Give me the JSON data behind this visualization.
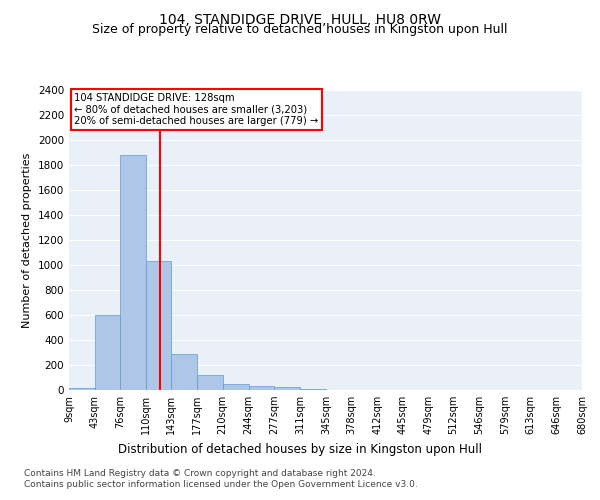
{
  "title1": "104, STANDIDGE DRIVE, HULL, HU8 0RW",
  "title2": "Size of property relative to detached houses in Kingston upon Hull",
  "xlabel": "Distribution of detached houses by size in Kingston upon Hull",
  "ylabel": "Number of detached properties",
  "footnote1": "Contains HM Land Registry data © Crown copyright and database right 2024.",
  "footnote2": "Contains public sector information licensed under the Open Government Licence v3.0.",
  "annotation_line1": "104 STANDIDGE DRIVE: 128sqm",
  "annotation_line2": "← 80% of detached houses are smaller (3,203)",
  "annotation_line3": "20% of semi-detached houses are larger (779) →",
  "bar_edges": [
    9,
    43,
    76,
    110,
    143,
    177,
    210,
    244,
    277,
    311,
    345,
    378,
    412,
    445,
    479,
    512,
    546,
    579,
    613,
    646,
    680
  ],
  "bar_heights": [
    20,
    600,
    1880,
    1030,
    290,
    120,
    50,
    35,
    25,
    10,
    0,
    0,
    0,
    0,
    0,
    0,
    0,
    0,
    0,
    0
  ],
  "bar_color": "#aec6e8",
  "bar_edgecolor": "#5b9bd5",
  "vline_x": 128,
  "vline_color": "red",
  "ylim": [
    0,
    2400
  ],
  "yticks": [
    0,
    200,
    400,
    600,
    800,
    1000,
    1200,
    1400,
    1600,
    1800,
    2000,
    2200,
    2400
  ],
  "bg_color": "#eaf0f8",
  "title1_fontsize": 10,
  "title2_fontsize": 9,
  "xlabel_fontsize": 8.5,
  "ylabel_fontsize": 8,
  "footnote_fontsize": 6.5,
  "tick_fontsize": 7,
  "ytick_fontsize": 7.5
}
